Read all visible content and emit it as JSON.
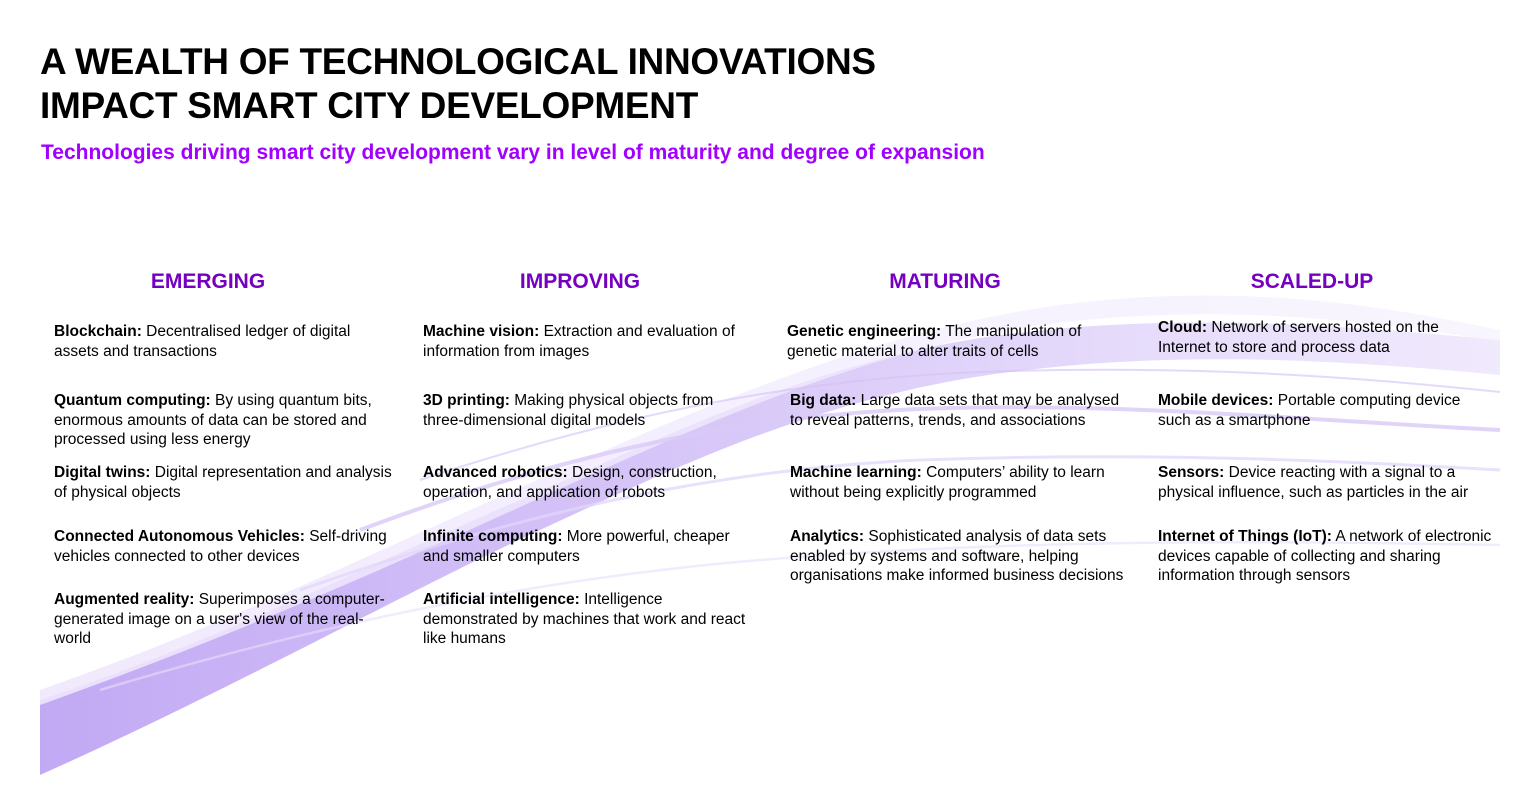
{
  "title": {
    "line1": "A WEALTH OF TECHNOLOGICAL INNOVATIONS",
    "line2": "IMPACT SMART CITY DEVELOPMENT"
  },
  "subtitle": "Technologies driving smart city development vary in level of maturity and degree of expansion",
  "colors": {
    "title": "#000000",
    "subtitle": "#a100ff",
    "heading": "#7500c0",
    "wave": "#c9b3f5"
  },
  "columns": [
    {
      "heading": "EMERGING",
      "items": [
        {
          "term": "Blockchain:",
          "desc": " Decentralised ledger of digital assets and transactions"
        },
        {
          "term": "Quantum computing:",
          "desc": " By using quantum bits, enormous amounts of data can be stored and processed using less energy"
        },
        {
          "term": "Digital twins:",
          "desc": " Digital representation and analysis of physical objects"
        },
        {
          "term": "Connected Autonomous Vehicles:",
          "desc": " Self-driving vehicles connected to other devices"
        },
        {
          "term": "Augmented reality:",
          "desc": " Superimposes a computer-generated image on a user's view of the real-world"
        }
      ]
    },
    {
      "heading": "IMPROVING",
      "items": [
        {
          "term": "Machine vision:",
          "desc": " Extraction and evaluation of information from images"
        },
        {
          "term": "3D printing:",
          "desc": " Making physical objects from three-dimensional digital models"
        },
        {
          "term": "Advanced robotics:",
          "desc": " Design, construction, operation, and application of robots"
        },
        {
          "term": "Infinite computing:",
          "desc": " More powerful, cheaper and smaller computers"
        },
        {
          "term": "Artificial intelligence:",
          "desc": " Intelligence demonstrated by machines that work and react like humans"
        }
      ]
    },
    {
      "heading": "MATURING",
      "items": [
        {
          "term": "Genetic engineering:",
          "desc": "  The manipulation of genetic material to alter traits of cells"
        },
        {
          "term": "Big data:",
          "desc": " Large data sets that may be analysed to reveal patterns, trends, and associations"
        },
        {
          "term": "Machine learning:",
          "desc": " Computers’ ability to learn without being explicitly programmed"
        },
        {
          "term": "Analytics:",
          "desc": " Sophisticated analysis of data sets enabled by systems and software, helping organisations make informed business decisions"
        }
      ]
    },
    {
      "heading": "SCALED-UP",
      "items": [
        {
          "term": "Cloud:",
          "desc": " Network of servers hosted on the Internet to store and process data"
        },
        {
          "term": "Mobile devices:",
          "desc": " Portable computing device such as a smartphone"
        },
        {
          "term": "Sensors:",
          "desc": " Device reacting with a signal to a physical influence, such as particles in the air"
        },
        {
          "term": "Internet of Things (IoT):",
          "desc": " A network of electronic devices capable of collecting and sharing information through sensors"
        }
      ]
    }
  ]
}
